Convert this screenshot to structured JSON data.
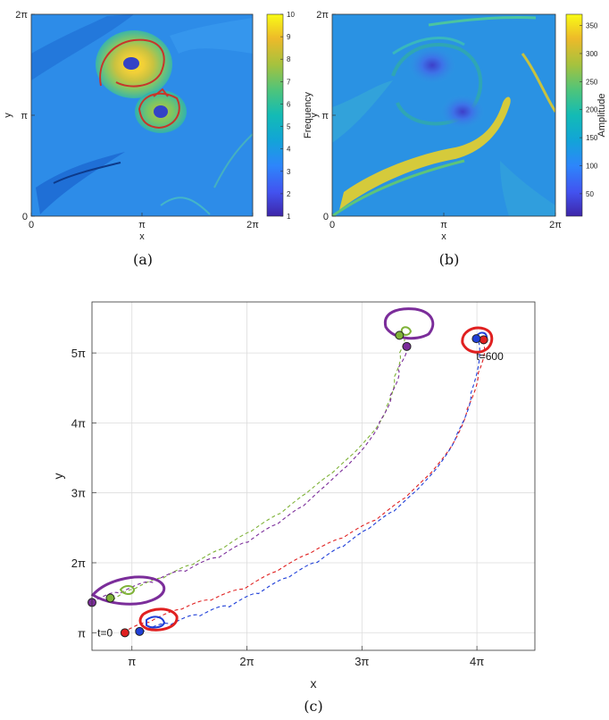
{
  "chart_data": [
    {
      "panel": "(a)",
      "type": "heatmap",
      "caption": "(a)",
      "xlabel": "x",
      "ylabel": "y",
      "x_ticks": [
        "0",
        "π",
        "2π"
      ],
      "y_ticks": [
        "0",
        "π",
        "2π"
      ],
      "xlim": [
        0,
        6.2832
      ],
      "ylim": [
        0,
        6.2832
      ],
      "colorbar": {
        "label": "Frequency",
        "range": [
          1,
          10
        ],
        "ticks": [
          "1",
          "2",
          "3",
          "4",
          "5",
          "6",
          "7",
          "8",
          "9",
          "10"
        ]
      },
      "colormap": "parula",
      "vortices": [
        {
          "x": 2.8,
          "y": 4.3,
          "peak": 10
        },
        {
          "x": 3.6,
          "y": 2.9,
          "peak": 7
        }
      ]
    },
    {
      "panel": "(b)",
      "type": "heatmap",
      "caption": "(b)",
      "xlabel": "x",
      "ylabel": "y",
      "x_ticks": [
        "0",
        "π",
        "2π"
      ],
      "y_ticks": [
        "0",
        "π",
        "2π"
      ],
      "xlim": [
        0,
        6.2832
      ],
      "ylim": [
        0,
        6.2832
      ],
      "colorbar": {
        "label": "Amplitude",
        "range": [
          10,
          370
        ],
        "ticks": [
          "50",
          "100",
          "150",
          "200",
          "250",
          "300",
          "350"
        ]
      },
      "colormap": "parula"
    },
    {
      "panel": "(c)",
      "type": "line",
      "caption": "(c)",
      "xlabel": "x",
      "ylabel": "y",
      "x_ticks": [
        "π",
        "2π",
        "3π",
        "4π"
      ],
      "y_ticks": [
        "π",
        "2π",
        "3π",
        "4π",
        "5π"
      ],
      "xlim": [
        2.05,
        14.15
      ],
      "ylim": [
        2.35,
        18.0
      ],
      "grid": true,
      "annotations": [
        {
          "text": "t=0",
          "x": 2.2,
          "y": 3.14
        },
        {
          "text": "t=600",
          "x": 12.55,
          "y": 15.55
        }
      ],
      "series": [
        {
          "color": "#7fb238",
          "style": "dashed",
          "x": [
            2.6,
            3.2,
            4.0,
            4.8,
            5.6,
            6.4,
            7.2,
            7.9,
            8.6,
            9.2,
            9.8,
            10.1,
            10.3,
            10.45,
            10.55
          ],
          "y": [
            4.6,
            5.1,
            5.6,
            6.2,
            6.9,
            7.7,
            8.5,
            9.4,
            10.3,
            11.2,
            12.3,
            13.3,
            14.6,
            15.7,
            16.5
          ]
        },
        {
          "color": "#7b2d9a",
          "style": "dashed",
          "x": [
            2.05,
            2.8,
            3.7,
            4.6,
            5.5,
            6.3,
            7.1,
            7.8,
            8.4,
            9.0,
            9.5,
            9.9,
            10.2,
            10.4,
            10.6
          ],
          "y": [
            4.5,
            4.9,
            5.4,
            5.9,
            6.5,
            7.2,
            8.0,
            8.8,
            9.7,
            10.6,
            11.5,
            12.6,
            13.8,
            15.0,
            15.9
          ]
        },
        {
          "color": "#e02020",
          "style": "dashed",
          "x": [
            2.9,
            3.6,
            4.5,
            5.3,
            6.2,
            7.1,
            8.0,
            8.9,
            9.8,
            10.6,
            11.3,
            11.9,
            12.3,
            12.6,
            12.75
          ],
          "y": [
            3.15,
            3.6,
            4.2,
            4.6,
            5.1,
            5.9,
            6.7,
            7.4,
            8.2,
            9.2,
            10.3,
            11.6,
            13.2,
            14.8,
            16.1
          ]
        },
        {
          "color": "#1f3fd8",
          "style": "dashed",
          "x": [
            3.4,
            4.2,
            5.0,
            5.8,
            6.6,
            7.4,
            8.2,
            8.9,
            9.6,
            10.3,
            10.9,
            11.5,
            12.0,
            12.4,
            12.6
          ],
          "y": [
            3.15,
            3.5,
            3.9,
            4.3,
            4.9,
            5.6,
            6.3,
            7.0,
            7.8,
            8.6,
            9.5,
            10.6,
            12.0,
            13.9,
            16.3
          ]
        }
      ],
      "markers_start": [
        {
          "color": "#7fb238",
          "x": 2.55,
          "y": 4.7
        },
        {
          "color": "#7b2d9a",
          "x": 2.05,
          "y": 4.5
        },
        {
          "color": "#e02020",
          "x": 2.95,
          "y": 3.14
        },
        {
          "color": "#1f3fd8",
          "x": 3.35,
          "y": 3.2
        }
      ],
      "markers_end": [
        {
          "color": "#7fb238",
          "x": 10.45,
          "y": 16.5
        },
        {
          "color": "#7b2d9a",
          "x": 10.65,
          "y": 16.0
        },
        {
          "color": "#e02020",
          "x": 12.75,
          "y": 16.3
        },
        {
          "color": "#1f3fd8",
          "x": 12.55,
          "y": 16.35
        }
      ]
    }
  ]
}
